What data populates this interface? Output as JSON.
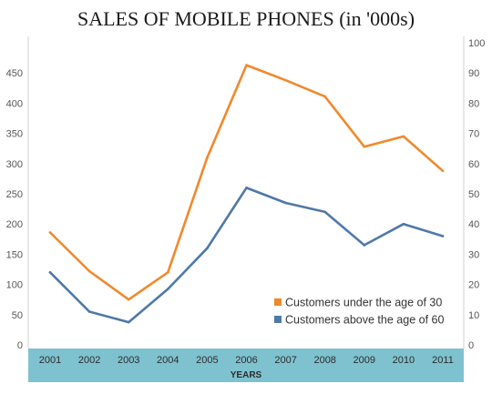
{
  "chart_data": {
    "type": "line",
    "title": "SALES OF MOBILE PHONES (in '000s)",
    "xlabel": "YEARS",
    "ylabel": "",
    "categories": [
      "2001",
      "2002",
      "2003",
      "2004",
      "2005",
      "2006",
      "2007",
      "2008",
      "2009",
      "2010",
      "2011"
    ],
    "series": [
      {
        "name": "Customers under the age of 30",
        "axis": "left",
        "color": "#f0892b",
        "values": [
          186,
          122,
          75,
          120,
          310,
          463,
          438,
          411,
          328,
          345,
          288
        ]
      },
      {
        "name": "Customers above the age of 60",
        "axis": "right",
        "color": "#4e79a7",
        "values": [
          24,
          11,
          7.5,
          18.5,
          32,
          52,
          47,
          44,
          33,
          40,
          36
        ]
      }
    ],
    "y_left": {
      "ylim": [
        0,
        500
      ],
      "ticks": [
        0,
        50,
        100,
        150,
        200,
        250,
        300,
        350,
        400,
        450
      ]
    },
    "y_right": {
      "ylim": [
        0,
        100
      ],
      "ticks": [
        0,
        10,
        20,
        30,
        40,
        50,
        60,
        70,
        80,
        90,
        100
      ]
    },
    "grid": false,
    "legend": "bottom-right, inside plot",
    "x_axis_band_color": "#7fc2cf"
  }
}
